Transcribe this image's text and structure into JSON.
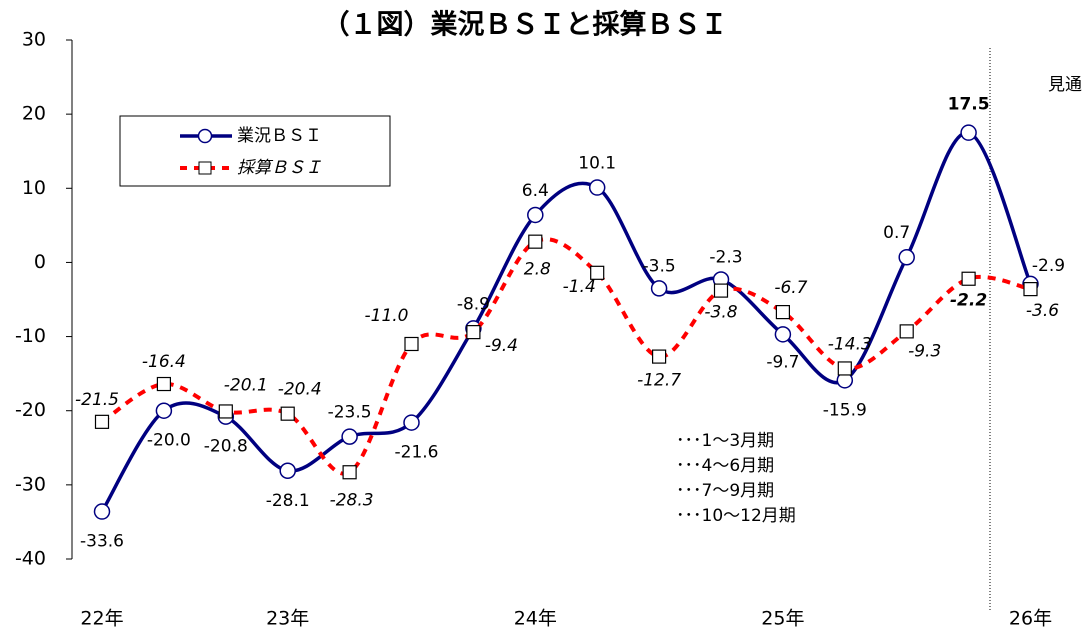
{
  "chart_data": {
    "type": "line",
    "title": "（１図）業況ＢＳＩと採算ＢＳＩ",
    "categories": [
      "22年",
      null,
      null,
      "23年",
      null,
      null,
      null,
      "24年",
      null,
      null,
      null,
      "25年",
      null,
      null,
      null,
      "26年"
    ],
    "series": [
      {
        "name": "業況ＢＳＩ",
        "color": "#000080",
        "values": [
          -33.6,
          -20.0,
          -20.8,
          -28.1,
          -23.5,
          -21.6,
          -8.9,
          6.4,
          10.1,
          -3.5,
          -2.3,
          -9.7,
          -15.9,
          0.7,
          17.5,
          -2.9
        ],
        "value_labels": [
          "-33.6",
          "-20.0",
          "-20.8",
          "-28.1",
          "-23.5",
          "-21.6",
          "-8.9",
          "6.4",
          "10.1",
          "-3.5",
          "-2.3",
          "-9.7",
          "-15.9",
          "0.7",
          "17.5",
          "-2.9"
        ]
      },
      {
        "name": "採算ＢＳＩ",
        "color": "#ff0000",
        "values": [
          -21.5,
          -16.4,
          -20.1,
          -20.4,
          -28.3,
          -11.0,
          -9.4,
          2.8,
          -1.4,
          -12.7,
          -3.8,
          -6.7,
          -14.3,
          -9.3,
          -2.2,
          -3.6
        ],
        "value_labels": [
          "-21.5",
          "-16.4",
          "-20.1",
          "-20.4",
          "-28.3",
          "-11.0",
          "-9.4",
          "2.8",
          "-1.4",
          "-12.7",
          "-3.8",
          "-6.7",
          "-14.3",
          "-9.3",
          "-2.2",
          "-3.6"
        ]
      }
    ],
    "ylim": [
      -40,
      30
    ],
    "yticks": [
      -40,
      -30,
      -20,
      -10,
      0,
      10,
      20,
      30
    ],
    "annotations": [
      "見通し",
      "･･･1～3月期",
      "･･･4～6月期",
      "･･･7～9月期",
      "･･･10～12月期"
    ]
  }
}
